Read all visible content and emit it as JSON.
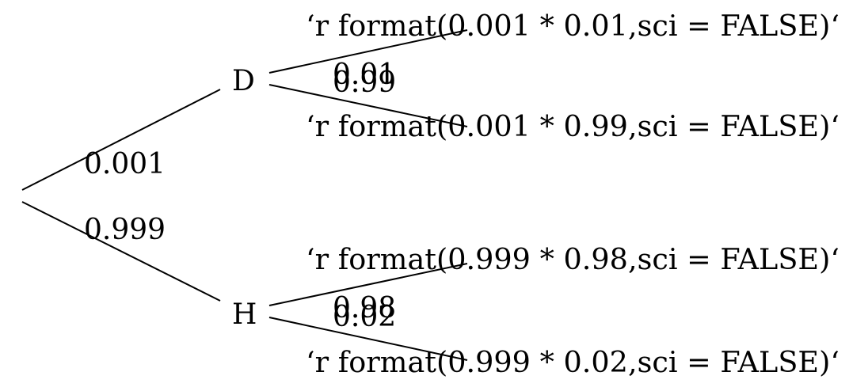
{
  "tree": {
    "root_branches": [
      {
        "node_label": "D",
        "probability": "0.001"
      },
      {
        "node_label": "H",
        "probability": "0.999"
      }
    ],
    "leaves": [
      {
        "probability": "0.01",
        "outcome": "‘r format(0.001 * 0.01,sci = FALSE)‘"
      },
      {
        "probability": "0.99",
        "outcome": "‘r format(0.001 * 0.99,sci = FALSE)‘"
      },
      {
        "probability": "0.98",
        "outcome": "‘r format(0.999 * 0.98,sci = FALSE)‘"
      },
      {
        "probability": "0.02",
        "outcome": "‘r format(0.999 * 0.02,sci = FALSE)‘"
      }
    ]
  }
}
